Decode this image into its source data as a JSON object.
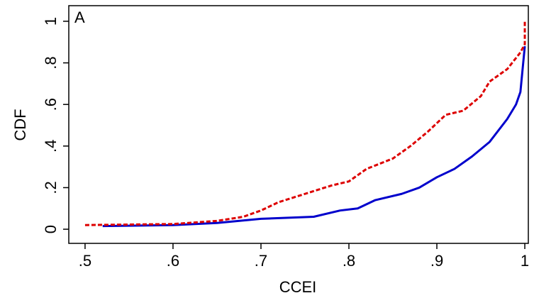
{
  "chart_data": {
    "type": "line",
    "annotation": "A",
    "xlabel": "CCEI",
    "ylabel": "CDF",
    "xlim": [
      0.4815,
      1.004
    ],
    "ylim": [
      -0.068,
      1.075
    ],
    "xticks": [
      {
        "value": 0.5,
        "label": ".5"
      },
      {
        "value": 0.6,
        "label": ".6"
      },
      {
        "value": 0.7,
        "label": ".7"
      },
      {
        "value": 0.8,
        "label": ".8"
      },
      {
        "value": 0.9,
        "label": ".9"
      },
      1
    ],
    "yticks": [
      0,
      {
        "value": 0.2,
        "label": ".2"
      },
      {
        "value": 0.4,
        "label": ".4"
      },
      {
        "value": 0.6,
        "label": ".6"
      },
      {
        "value": 0.8,
        "label": ".8"
      },
      1
    ],
    "series": [
      {
        "color": "#0000cc",
        "dashed": false,
        "x": [
          0.52,
          0.6,
          0.65,
          0.7,
          0.76,
          0.79,
          0.81,
          0.83,
          0.86,
          0.88,
          0.9,
          0.92,
          0.94,
          0.96,
          0.98,
          0.99,
          0.995,
          1.0
        ],
        "values": [
          0.015,
          0.02,
          0.03,
          0.05,
          0.06,
          0.09,
          0.1,
          0.14,
          0.17,
          0.2,
          0.25,
          0.29,
          0.35,
          0.42,
          0.53,
          0.6,
          0.66,
          0.88
        ]
      },
      {
        "color": "#dd0000",
        "dashed": true,
        "x": [
          0.5,
          0.6,
          0.65,
          0.68,
          0.7,
          0.72,
          0.75,
          0.78,
          0.8,
          0.82,
          0.85,
          0.87,
          0.89,
          0.91,
          0.93,
          0.95,
          0.96,
          0.98,
          0.995,
          1.0,
          1.0
        ],
        "values": [
          0.02,
          0.025,
          0.04,
          0.06,
          0.09,
          0.13,
          0.17,
          0.21,
          0.23,
          0.29,
          0.34,
          0.4,
          0.47,
          0.55,
          0.57,
          0.64,
          0.71,
          0.77,
          0.85,
          0.89,
          1.0
        ]
      }
    ]
  }
}
